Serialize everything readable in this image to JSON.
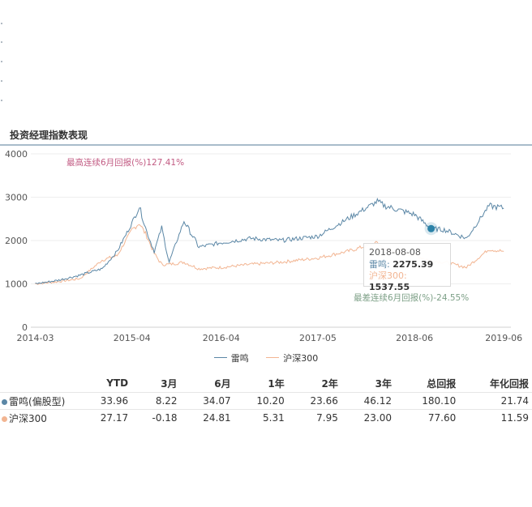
{
  "section": {
    "title": "投资经理指数表现"
  },
  "colors": {
    "manager": "#5b87a6",
    "index": "#f2b592",
    "max_annot": "#c25b83",
    "min_annot": "#7c9f86",
    "hover_dot": "#2b82a8"
  },
  "chart_data": {
    "type": "line",
    "xlabel": "",
    "ylabel": "",
    "ylim": [
      0,
      4000
    ],
    "yticks": [
      0,
      1000,
      2000,
      3000,
      4000
    ],
    "xticks": [
      "2014-03",
      "2015-04",
      "2016-04",
      "2017-05",
      "2018-06",
      "2019-06"
    ],
    "grid": true,
    "legend": "bottom-center",
    "series": [
      {
        "name": "雷鸣",
        "color": "#5b87a6",
        "x": [
          "2014-03",
          "2014-06",
          "2014-09",
          "2014-12",
          "2015-02",
          "2015-04",
          "2015-05",
          "2015-06",
          "2015-07",
          "2015-08",
          "2015-09",
          "2015-11",
          "2016-01",
          "2016-04",
          "2016-08",
          "2016-12",
          "2017-05",
          "2017-09",
          "2018-01",
          "2018-02",
          "2018-06",
          "2018-08-08",
          "2018-10",
          "2019-01",
          "2019-04",
          "2019-06"
        ],
        "values": [
          1000,
          1080,
          1200,
          1350,
          1750,
          2400,
          2780,
          2200,
          1750,
          2300,
          1500,
          2450,
          1850,
          1950,
          2050,
          2000,
          2100,
          2500,
          2900,
          2800,
          2600,
          2275.39,
          2250,
          2050,
          2800,
          2750
        ]
      },
      {
        "name": "沪深300",
        "color": "#f2b592",
        "x": [
          "2014-03",
          "2014-06",
          "2014-09",
          "2014-12",
          "2015-02",
          "2015-04",
          "2015-05",
          "2015-06",
          "2015-07",
          "2015-08",
          "2015-09",
          "2015-11",
          "2016-01",
          "2016-04",
          "2016-08",
          "2016-12",
          "2017-05",
          "2017-09",
          "2018-01",
          "2018-02",
          "2018-06",
          "2018-08-08",
          "2018-10",
          "2019-01",
          "2019-04",
          "2019-06"
        ],
        "values": [
          1000,
          1050,
          1120,
          1550,
          1650,
          2250,
          2400,
          2100,
          1700,
          1450,
          1450,
          1500,
          1350,
          1380,
          1450,
          1500,
          1600,
          1750,
          1950,
          1800,
          1650,
          1537.55,
          1500,
          1380,
          1800,
          1750
        ]
      }
    ],
    "annotations": {
      "max": "最高连续6月回报(%)127.41%",
      "min": "最差连续6月回报(%)-24.55%"
    },
    "tooltip": {
      "date": "2018-08-08",
      "rows": [
        {
          "label": "雷鸣:",
          "value": "2275.39"
        },
        {
          "label": "沪深300:",
          "value": "1537.55"
        }
      ]
    }
  },
  "returns_table": {
    "headers": [
      "YTD",
      "3月",
      "6月",
      "1年",
      "2年",
      "3年",
      "总回报",
      "年化回报"
    ],
    "rows": [
      {
        "name": "雷鸣(偏股型)",
        "color": "#5b87a6",
        "values": [
          "33.96",
          "8.22",
          "34.07",
          "10.20",
          "23.66",
          "46.12",
          "180.10",
          "21.74"
        ]
      },
      {
        "name": "沪深300",
        "color": "#f2b592",
        "values": [
          "27.17",
          "-0.18",
          "24.81",
          "5.31",
          "7.95",
          "23.00",
          "77.60",
          "11.59"
        ]
      }
    ]
  }
}
